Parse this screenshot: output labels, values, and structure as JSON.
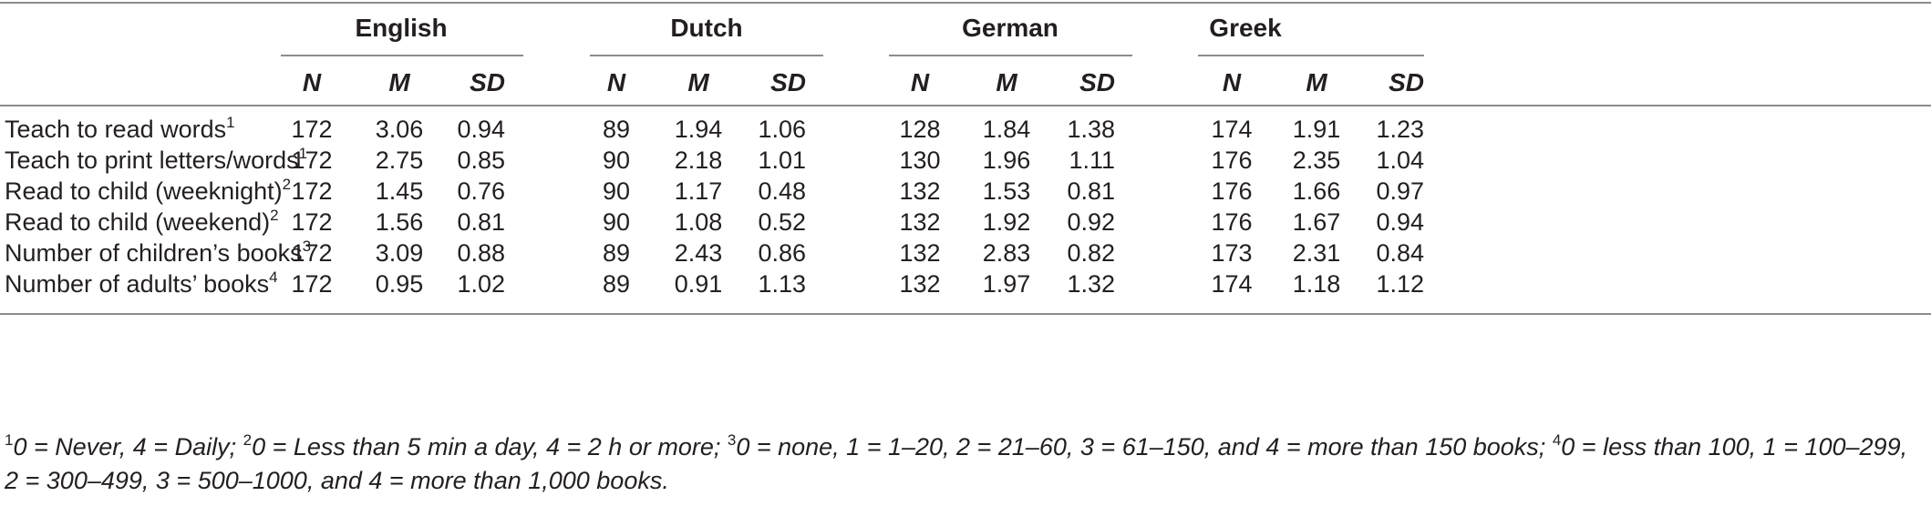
{
  "table": {
    "languages": [
      "English",
      "Dutch",
      "German",
      "Greek"
    ],
    "subheaders": [
      "N",
      "M",
      "SD"
    ],
    "rows": [
      {
        "label": "Teach to read words",
        "sup": "1",
        "values": [
          "172",
          "3.06",
          "0.94",
          "89",
          "1.94",
          "1.06",
          "128",
          "1.84",
          "1.38",
          "174",
          "1.91",
          "1.23"
        ]
      },
      {
        "label": "Teach to print letters/words",
        "sup": "1",
        "values": [
          "172",
          "2.75",
          "0.85",
          "90",
          "2.18",
          "1.01",
          "130",
          "1.96",
          "1.11",
          "176",
          "2.35",
          "1.04"
        ]
      },
      {
        "label": "Read to child (weeknight)",
        "sup": "2",
        "values": [
          "172",
          "1.45",
          "0.76",
          "90",
          "1.17",
          "0.48",
          "132",
          "1.53",
          "0.81",
          "176",
          "1.66",
          "0.97"
        ]
      },
      {
        "label": "Read to child (weekend)",
        "sup": "2",
        "values": [
          "172",
          "1.56",
          "0.81",
          "90",
          "1.08",
          "0.52",
          "132",
          "1.92",
          "0.92",
          "176",
          "1.67",
          "0.94"
        ]
      },
      {
        "label": "Number of children’s books",
        "sup": "3",
        "values": [
          "172",
          "3.09",
          "0.88",
          "89",
          "2.43",
          "0.86",
          "132",
          "2.83",
          "0.82",
          "173",
          "2.31",
          "0.84"
        ]
      },
      {
        "label": "Number of adults’ books",
        "sup": "4",
        "values": [
          "172",
          "0.95",
          "1.02",
          "89",
          "0.91",
          "1.13",
          "132",
          "1.97",
          "1.32",
          "174",
          "1.18",
          "1.12"
        ]
      }
    ]
  },
  "footnotes": [
    {
      "mark": "1",
      "text": "0 = Never, 4 = Daily; "
    },
    {
      "mark": "2",
      "text": "0 = Less than 5 min a day, 4 = 2 h or more; "
    },
    {
      "mark": "3",
      "text": "0 = none, 1 = 1–20, 2 = 21–60, 3 = 61–150, and 4 = more than 150 books; "
    },
    {
      "mark": "4",
      "text": "0 = less than 100, 1 = 100–299, 2 = 300–499, 3 = 500–1000, and 4 = more than 1,000 books."
    }
  ]
}
